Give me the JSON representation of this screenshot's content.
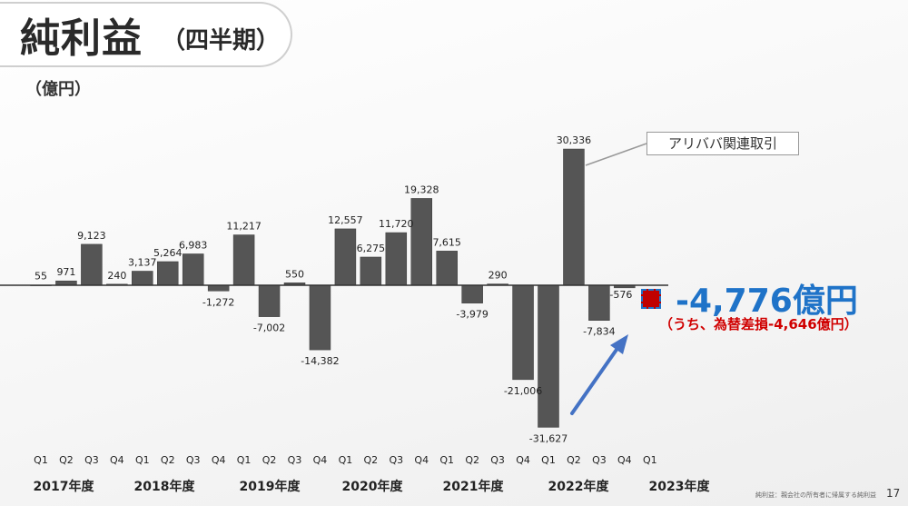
{
  "header": {
    "title": "純利益",
    "subtitle": "（四半期）",
    "unit": "（億円）"
  },
  "callout": {
    "label": "アリババ関連取引"
  },
  "current": {
    "value": "-4,776億円",
    "note": "（うち、為替差損-4,646億円）"
  },
  "footer": {
    "note": "純利益：親会社の所有者に帰属する純利益",
    "page": "17"
  },
  "colors": {
    "bar": "#555555",
    "current_marker": "#c00000",
    "current_value": "#1f73c8",
    "note": "#d00000",
    "arrow": "#4472c4"
  },
  "chart_data": {
    "type": "bar",
    "categories": [
      "Q1",
      "Q2",
      "Q3",
      "Q4",
      "Q1",
      "Q2",
      "Q3",
      "Q4",
      "Q1",
      "Q2",
      "Q3",
      "Q4",
      "Q1",
      "Q2",
      "Q3",
      "Q4",
      "Q1",
      "Q2",
      "Q3",
      "Q4",
      "Q1",
      "Q2",
      "Q3",
      "Q4",
      "Q1"
    ],
    "values": [
      55,
      971,
      9123,
      240,
      3137,
      5264,
      6983,
      -1272,
      11217,
      -7002,
      550,
      -14382,
      12557,
      6275,
      11720,
      19328,
      7615,
      -3979,
      290,
      -21006,
      -31627,
      30336,
      -7834,
      -576,
      -4776
    ],
    "value_labels": [
      "55",
      "971",
      "9,123",
      "240",
      "3,137",
      "5,264",
      "6,983",
      "-1,272",
      "11,217",
      "-7,002",
      "550",
      "-14,382",
      "12,557",
      "6,275",
      "11,720",
      "19,328",
      "7,615",
      "-3,979",
      "290",
      "-21,006",
      "-31,627",
      "30,336",
      "-7,834",
      "-576",
      ""
    ],
    "years": [
      "2017年度",
      "2018年度",
      "2019年度",
      "2020年度",
      "2021年度",
      "2022年度",
      "2023年度"
    ],
    "ylabel": "（億円）",
    "grid": false,
    "legend": "none"
  }
}
